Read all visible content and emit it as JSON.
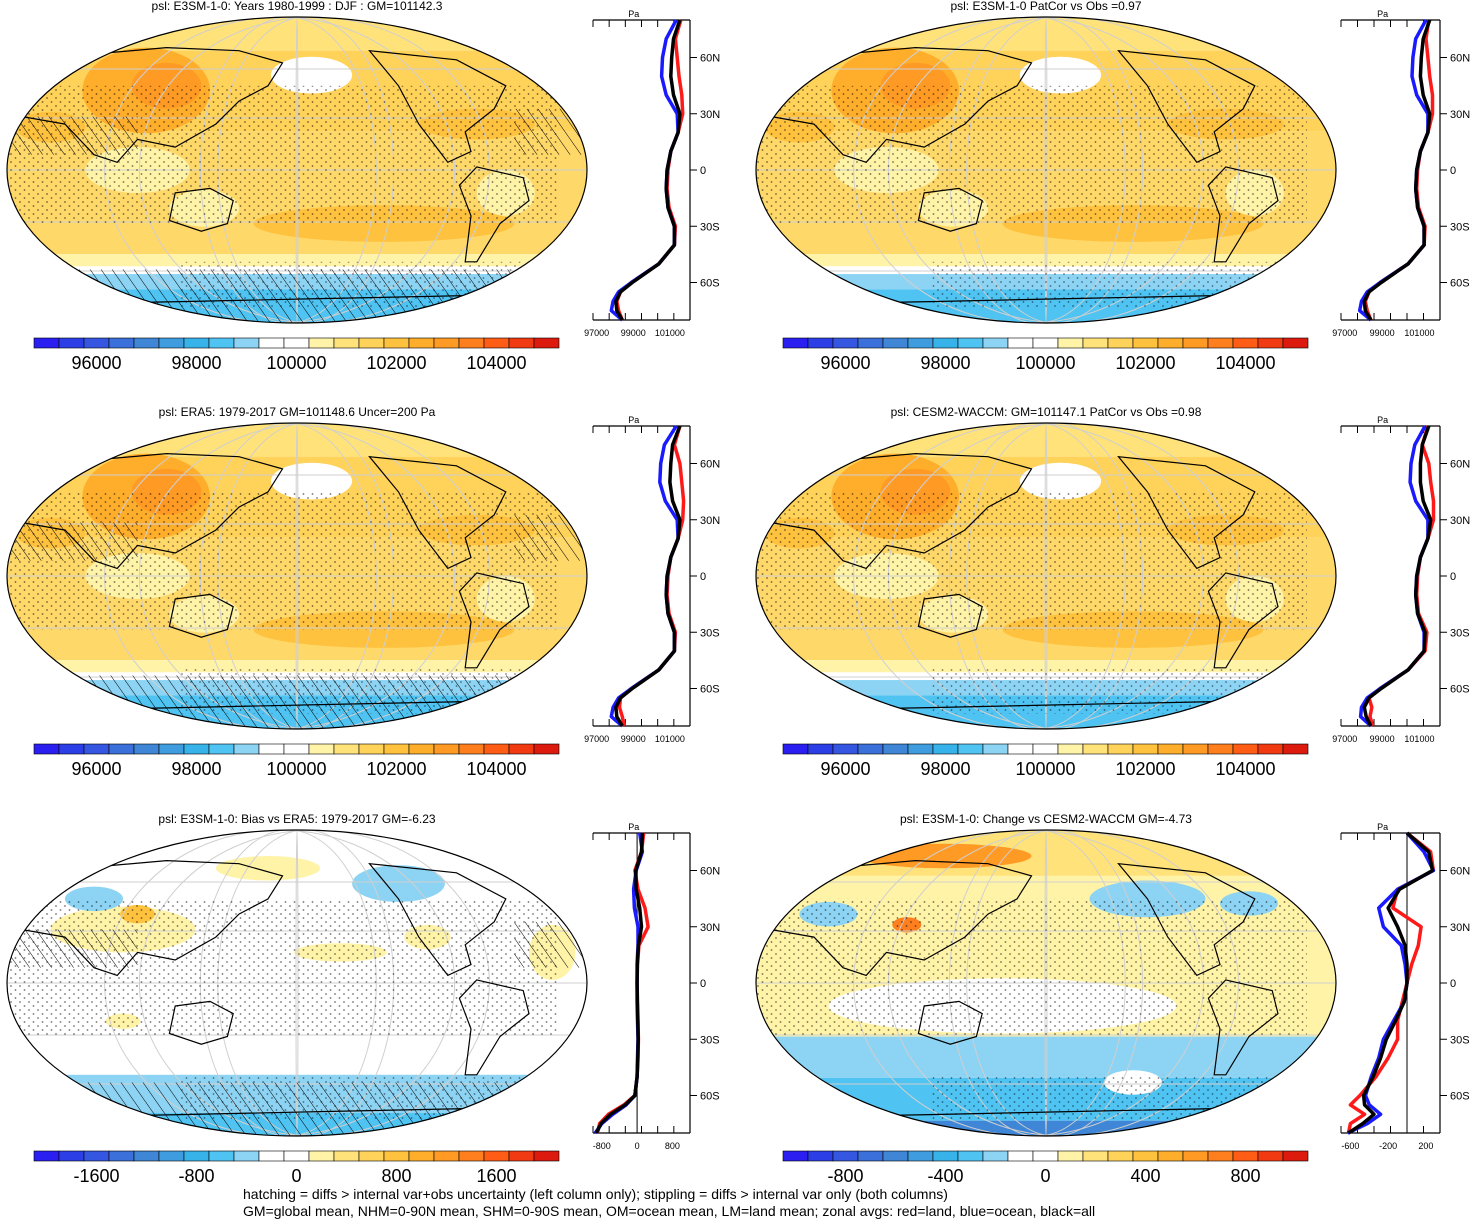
{
  "footer": {
    "line1": "hatching = diffs > internal var+obs uncertainty (left column only); stippling = diffs > internal var only (both columns)",
    "line2": "GM=global mean, NHM=0-90N mean, SHM=0-90S mean, OM=ocean mean, LM=land mean; zonal avgs: red=land, blue=ocean, black=all"
  },
  "chart_data": [
    {
      "type": "heatmap",
      "panel": "row1-left",
      "title": "psl: E3SM-1-0: Years 1980-1999 : DJF : GM=101142.3",
      "palette": "full",
      "colorbar_ticks": [
        "96000",
        "98000",
        "100000",
        "102000",
        "104000"
      ],
      "hatching": true,
      "zonal": {
        "type": "line",
        "unit": "Pa",
        "xticks": [
          "97000",
          "99000",
          "101000"
        ],
        "yticks": [
          "60N",
          "30N",
          "0",
          "30S",
          "60S"
        ],
        "lat": [
          80,
          70,
          60,
          50,
          40,
          30,
          20,
          10,
          0,
          -10,
          -20,
          -30,
          -40,
          -50,
          -60,
          -65,
          -70,
          -75,
          -80
        ],
        "series": [
          {
            "name": "land",
            "color": "#ff1a1a",
            "values": [
              101600,
              101300,
              101400,
              101500,
              101650,
              101700,
              101450,
              101050,
              100900,
              100850,
              100950,
              101300,
              101250,
              100400,
              98900,
              98300,
              98100,
              98200,
              98400
            ]
          },
          {
            "name": "ocean",
            "color": "#1a1aff",
            "values": [
              101350,
              100800,
              100600,
              100550,
              100800,
              101400,
              101450,
              101050,
              100850,
              100800,
              100900,
              101250,
              101250,
              100400,
              98900,
              98200,
              97900,
              97800,
              98400
            ]
          },
          {
            "name": "all",
            "color": "#000000",
            "values": [
              101550,
              101200,
              101100,
              101050,
              101200,
              101550,
              101450,
              101050,
              100850,
              100800,
              100900,
              101250,
              101250,
              100400,
              98950,
              98300,
              98050,
              98100,
              98400
            ]
          }
        ]
      }
    },
    {
      "type": "heatmap",
      "panel": "row1-right",
      "title": "psl: E3SM-1-0 PatCor vs Obs =0.97",
      "palette": "full",
      "colorbar_ticks": [
        "96000",
        "98000",
        "100000",
        "102000",
        "104000"
      ],
      "hatching": false,
      "zonal": {
        "type": "line",
        "unit": "Pa",
        "xticks": [
          "97000",
          "99000",
          "101000"
        ],
        "yticks": [
          "60N",
          "30N",
          "0",
          "30S",
          "60S"
        ],
        "lat": [
          80,
          70,
          60,
          50,
          40,
          30,
          20,
          10,
          0,
          -10,
          -20,
          -30,
          -40,
          -50,
          -60,
          -65,
          -70,
          -75,
          -80
        ],
        "series": [
          {
            "name": "land",
            "color": "#ff1a1a",
            "values": [
              101500,
              101350,
              101450,
              101550,
              101700,
              101700,
              101450,
              101050,
              100900,
              100850,
              100950,
              101300,
              101250,
              100400,
              98900,
              98300,
              98100,
              98200,
              98400
            ]
          },
          {
            "name": "ocean",
            "color": "#1a1aff",
            "values": [
              101350,
              100800,
              100650,
              100600,
              100850,
              101450,
              101450,
              101050,
              100850,
              100800,
              100900,
              101250,
              101250,
              100400,
              98900,
              98200,
              97900,
              97800,
              98400
            ]
          },
          {
            "name": "all",
            "color": "#000000",
            "values": [
              101550,
              101200,
              101100,
              101050,
              101200,
              101550,
              101450,
              101050,
              100850,
              100800,
              100900,
              101250,
              101250,
              100400,
              98950,
              98300,
              98050,
              98100,
              98400
            ]
          }
        ]
      }
    },
    {
      "type": "heatmap",
      "panel": "row2-left",
      "title": "psl: ERA5: 1979-2017 GM=101148.6 Uncer=200 Pa",
      "palette": "full",
      "colorbar_ticks": [
        "96000",
        "98000",
        "100000",
        "102000",
        "104000"
      ],
      "hatching": true,
      "zonal": {
        "type": "line",
        "unit": "Pa",
        "xticks": [
          "97000",
          "99000",
          "101000"
        ],
        "yticks": [
          "60N",
          "30N",
          "0",
          "30S",
          "60S"
        ],
        "lat": [
          80,
          70,
          60,
          50,
          40,
          30,
          20,
          10,
          0,
          -10,
          -20,
          -30,
          -40,
          -50,
          -60,
          -65,
          -70,
          -75,
          -80
        ],
        "series": [
          {
            "name": "land",
            "color": "#ff1a1a",
            "values": [
              101550,
              101250,
              101550,
              101650,
              101750,
              101700,
              101450,
              101050,
              100900,
              100850,
              100950,
              101300,
              101250,
              100400,
              98900,
              98300,
              98250,
              98400,
              98500
            ]
          },
          {
            "name": "ocean",
            "color": "#1a1aff",
            "values": [
              101350,
              100700,
              100500,
              100450,
              100750,
              101400,
              101450,
              101050,
              100850,
              100800,
              100900,
              101250,
              101250,
              100400,
              98900,
              98200,
              97900,
              97800,
              98400
            ]
          },
          {
            "name": "all",
            "color": "#000000",
            "values": [
              101550,
              101150,
              101050,
              101000,
              101150,
              101550,
              101450,
              101050,
              100850,
              100800,
              100900,
              101250,
              101250,
              100400,
              98950,
              98300,
              98050,
              98100,
              98400
            ]
          }
        ]
      }
    },
    {
      "type": "heatmap",
      "panel": "row2-right",
      "title": "psl: CESM2-WACCM: GM=101147.1 PatCor vs Obs =0.98",
      "palette": "full",
      "colorbar_ticks": [
        "96000",
        "98000",
        "100000",
        "102000",
        "104000"
      ],
      "hatching": false,
      "zonal": {
        "type": "line",
        "unit": "Pa",
        "xticks": [
          "97000",
          "99000",
          "101000"
        ],
        "yticks": [
          "60N",
          "30N",
          "0",
          "30S",
          "60S"
        ],
        "lat": [
          80,
          70,
          60,
          50,
          40,
          30,
          20,
          10,
          0,
          -10,
          -20,
          -30,
          -40,
          -50,
          -60,
          -65,
          -70,
          -75,
          -80
        ],
        "series": [
          {
            "name": "land",
            "color": "#ff1a1a",
            "values": [
              101450,
              101150,
              101500,
              101600,
              101750,
              101750,
              101450,
              101050,
              100900,
              100850,
              100950,
              101400,
              101300,
              100400,
              98900,
              98300,
              98450,
              98350,
              98500
            ]
          },
          {
            "name": "ocean",
            "color": "#1a1aff",
            "values": [
              101300,
              100750,
              100550,
              100500,
              100800,
              101450,
              101450,
              101050,
              100850,
              100800,
              100900,
              101250,
              101250,
              100400,
              98900,
              98200,
              97900,
              97850,
              98400
            ]
          },
          {
            "name": "all",
            "color": "#000000",
            "values": [
              101500,
              101150,
              101050,
              101050,
              101200,
              101600,
              101450,
              101050,
              100850,
              100800,
              100900,
              101300,
              101250,
              100400,
              98950,
              98300,
              98050,
              98150,
              98400
            ]
          }
        ]
      }
    },
    {
      "type": "heatmap",
      "panel": "row3-left",
      "title": "psl: E3SM-1-0: Bias vs ERA5: 1979-2017 GM=-6.23",
      "palette": "diff",
      "colorbar_ticks": [
        "-1600",
        "-800",
        "0",
        "800",
        "1600"
      ],
      "hatching": true,
      "zonal": {
        "type": "line",
        "unit": "Pa",
        "xticks": [
          "-800",
          "0",
          "800"
        ],
        "yticks": [
          "60N",
          "30N",
          "0",
          "30S",
          "60S"
        ],
        "lat": [
          80,
          70,
          60,
          50,
          40,
          30,
          20,
          10,
          0,
          -10,
          -20,
          -30,
          -40,
          -50,
          -60,
          -65,
          -70,
          -75,
          -80
        ],
        "series": [
          {
            "name": "land",
            "color": "#ff1a1a",
            "values": [
              150,
              100,
              -50,
              20,
              180,
              250,
              40,
              10,
              0,
              10,
              20,
              30,
              20,
              0,
              -50,
              -300,
              -650,
              -850,
              -900
            ]
          },
          {
            "name": "ocean",
            "color": "#1a1aff",
            "values": [
              60,
              120,
              -20,
              -80,
              -60,
              20,
              20,
              0,
              0,
              0,
              10,
              20,
              10,
              0,
              -50,
              -250,
              -550,
              -800,
              -950
            ]
          },
          {
            "name": "all",
            "color": "#000000",
            "values": [
              120,
              100,
              -30,
              -20,
              60,
              100,
              30,
              5,
              0,
              5,
              15,
              25,
              15,
              0,
              -50,
              -270,
              -600,
              -820,
              -920
            ]
          }
        ]
      }
    },
    {
      "type": "heatmap",
      "panel": "row3-right",
      "title": "psl: E3SM-1-0: Change vs CESM2-WACCM GM=-4.73",
      "palette": "diff",
      "colorbar_ticks": [
        "-800",
        "-400",
        "0",
        "400",
        "800"
      ],
      "hatching": false,
      "zonal": {
        "type": "line",
        "unit": "Pa",
        "xticks": [
          "-600",
          "-200",
          "200"
        ],
        "yticks": [
          "60N",
          "30N",
          "0",
          "30S",
          "60S"
        ],
        "lat": [
          80,
          70,
          60,
          50,
          40,
          30,
          20,
          10,
          0,
          -10,
          -20,
          -30,
          -40,
          -50,
          -60,
          -65,
          -70,
          -75,
          -80
        ],
        "series": [
          {
            "name": "land",
            "color": "#ff1a1a",
            "values": [
              0,
              250,
              280,
              -100,
              -150,
              150,
              120,
              50,
              0,
              -50,
              -100,
              -100,
              -200,
              -330,
              -500,
              -600,
              -450,
              -600,
              -620
            ]
          },
          {
            "name": "ocean",
            "color": "#1a1aff",
            "values": [
              0,
              180,
              280,
              -100,
              -300,
              -250,
              -60,
              -20,
              0,
              -30,
              -140,
              -250,
              -300,
              -380,
              -440,
              -400,
              -280,
              -420,
              -630
            ]
          },
          {
            "name": "all",
            "color": "#000000",
            "values": [
              0,
              230,
              270,
              -80,
              -200,
              -100,
              -20,
              0,
              0,
              -30,
              -120,
              -220,
              -280,
              -360,
              -460,
              -450,
              -350,
              -470,
              -620
            ]
          }
        ]
      }
    }
  ]
}
